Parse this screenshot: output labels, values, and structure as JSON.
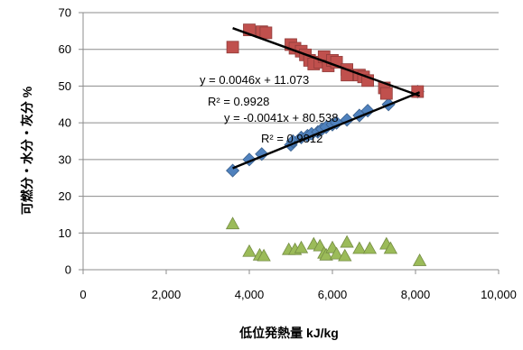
{
  "chart_data": {
    "type": "scatter",
    "title": "",
    "xlabel": "低位発熱量 kJ/kg",
    "ylabel": "可燃分・水分・灰分 %",
    "xlim": [
      0,
      10000
    ],
    "ylim": [
      0,
      70
    ],
    "x_ticks": [
      "0",
      "2,000",
      "4,000",
      "6,000",
      "8,000",
      "10,000"
    ],
    "y_ticks": [
      "0",
      "10",
      "20",
      "30",
      "40",
      "50",
      "60",
      "70"
    ],
    "grid": "horizontal major gridlines",
    "legend": "none",
    "series": [
      {
        "marker": "diamond",
        "color": "#4F81BD",
        "points": [
          [
            3600,
            27
          ],
          [
            4000,
            30
          ],
          [
            4300,
            31.5
          ],
          [
            5000,
            34
          ],
          [
            5050,
            35
          ],
          [
            5250,
            36
          ],
          [
            5400,
            36.5
          ],
          [
            5500,
            37
          ],
          [
            5650,
            37.5
          ],
          [
            5750,
            38.3
          ],
          [
            5850,
            38.8
          ],
          [
            6000,
            39.5
          ],
          [
            6100,
            40
          ],
          [
            6350,
            40.8
          ],
          [
            6650,
            42
          ],
          [
            6850,
            43.3
          ],
          [
            7350,
            45
          ],
          [
            8050,
            48.5
          ]
        ]
      },
      {
        "marker": "square",
        "color": "#C0504D",
        "points": [
          [
            3600,
            60.6
          ],
          [
            4000,
            65.3
          ],
          [
            4300,
            64.8
          ],
          [
            4400,
            64.5
          ],
          [
            5000,
            61.3
          ],
          [
            5100,
            60.3
          ],
          [
            5250,
            59.5
          ],
          [
            5350,
            58.5
          ],
          [
            5450,
            57
          ],
          [
            5550,
            56
          ],
          [
            5700,
            56.5
          ],
          [
            5800,
            58
          ],
          [
            5900,
            55.5
          ],
          [
            6000,
            57
          ],
          [
            6100,
            56.5
          ],
          [
            6350,
            54.5
          ],
          [
            6350,
            53
          ],
          [
            6650,
            53
          ],
          [
            6750,
            52.5
          ],
          [
            6850,
            51.5
          ],
          [
            7250,
            49.5
          ],
          [
            7300,
            48
          ],
          [
            8050,
            48.5
          ]
        ]
      },
      {
        "marker": "triangle",
        "color": "#9BBB59",
        "points": [
          [
            3600,
            12.5
          ],
          [
            4000,
            5
          ],
          [
            4250,
            4
          ],
          [
            4350,
            3.8
          ],
          [
            4950,
            5.5
          ],
          [
            5100,
            5.5
          ],
          [
            5250,
            6
          ],
          [
            5550,
            7
          ],
          [
            5700,
            6.5
          ],
          [
            5800,
            4.5
          ],
          [
            5850,
            4
          ],
          [
            6000,
            6
          ],
          [
            6100,
            4.3
          ],
          [
            6300,
            3.8
          ],
          [
            6350,
            7.5
          ],
          [
            6650,
            5.8
          ],
          [
            6900,
            5.8
          ],
          [
            7300,
            7
          ],
          [
            7400,
            5.8
          ],
          [
            8100,
            2.5
          ]
        ]
      }
    ],
    "trendlines": [
      {
        "series": 0,
        "slope": 0.0046,
        "intercept": 11.073,
        "x_range": [
          3600,
          8100
        ],
        "color": "#000000",
        "equation": "y = 0.0046x + 11.073",
        "r_squared": "R² = 0.9928"
      },
      {
        "series": 1,
        "slope": -0.0041,
        "intercept": 80.538,
        "x_range": [
          3600,
          8100
        ],
        "color": "#000000",
        "equation": "y = -0.0041x + 80.538",
        "r_squared": "R² = 0.9812"
      }
    ]
  }
}
